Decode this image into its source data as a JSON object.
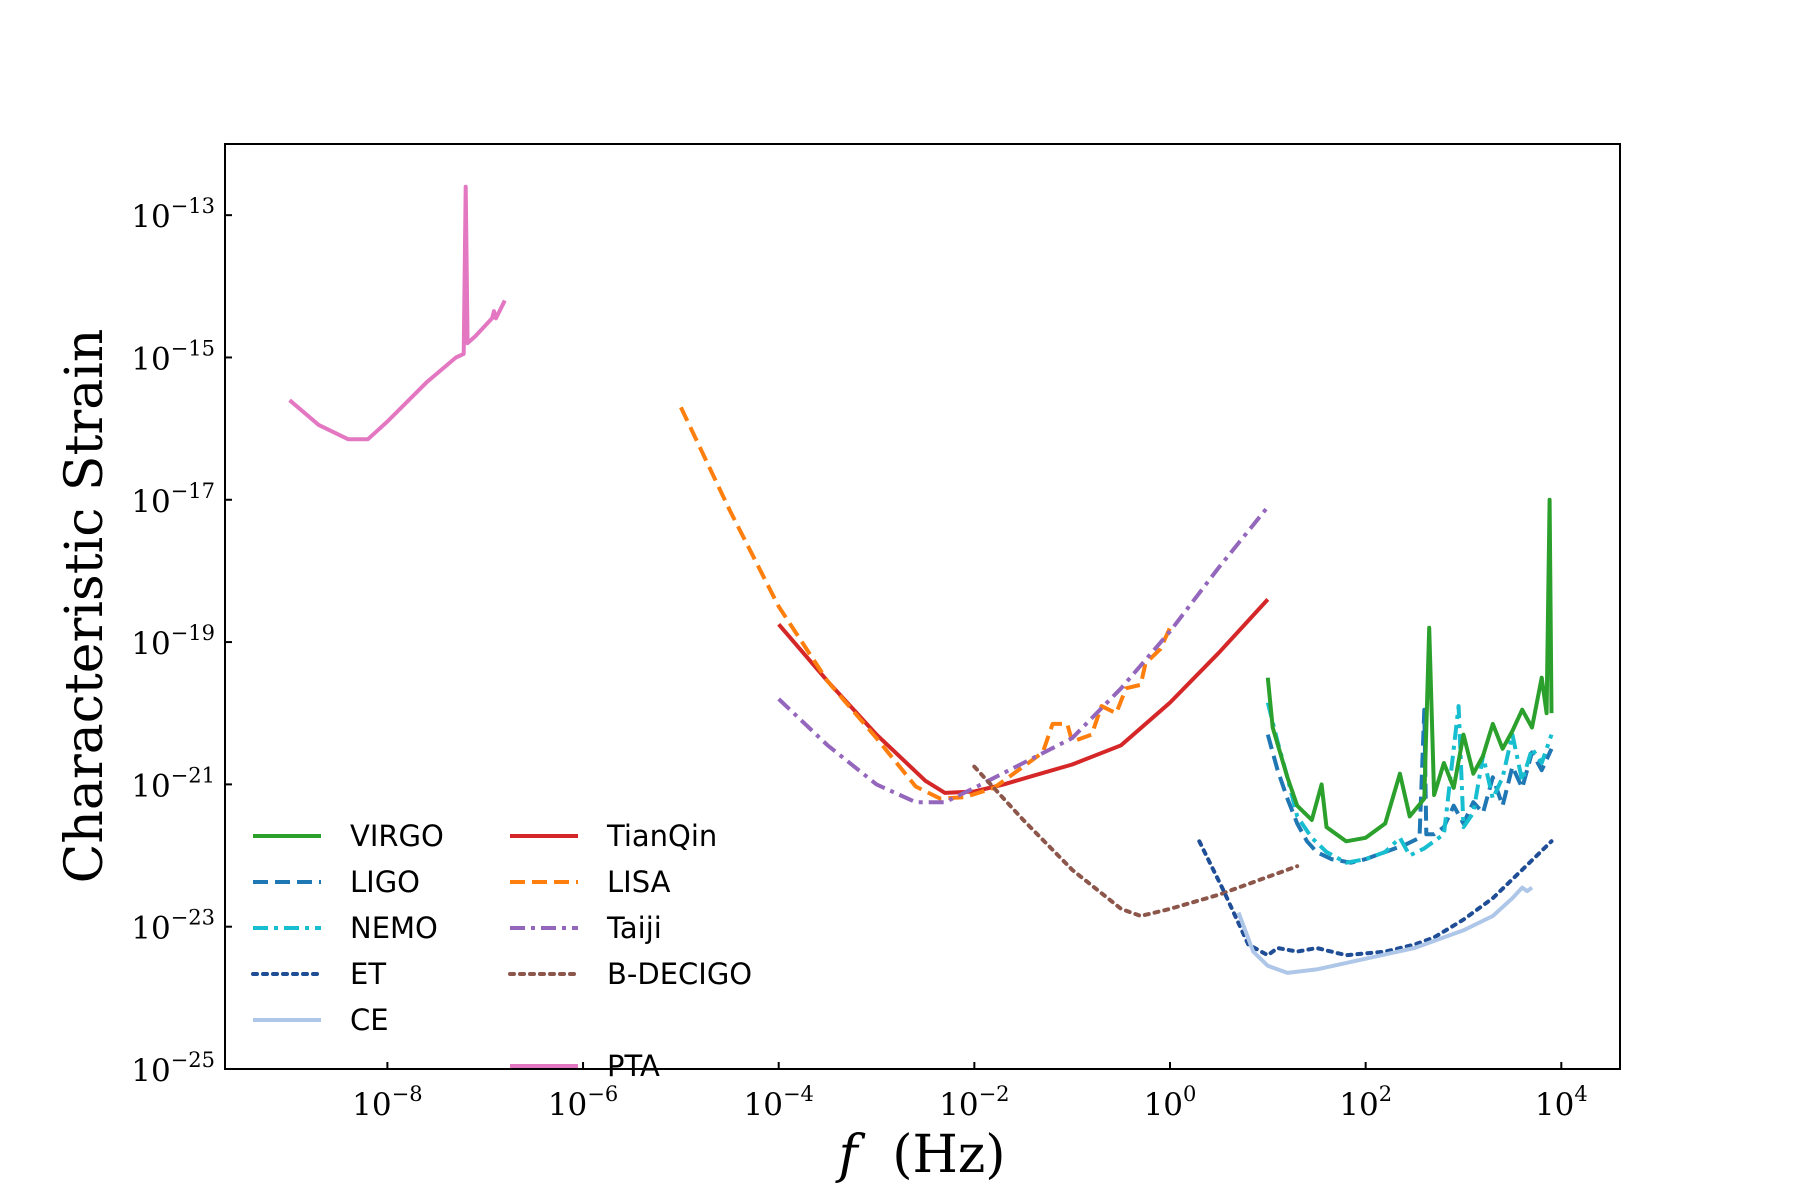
{
  "chart_data": {
    "type": "line",
    "title": "",
    "xlabel": "f (Hz)",
    "xlabel_parts": {
      "symbol": "f",
      "unit": "(Hz)"
    },
    "ylabel": "Characteristic Strain",
    "x_scale": "log",
    "y_scale": "log",
    "xlim_log10": [
      -9.66,
      4.6
    ],
    "ylim_log10": [
      -25,
      -12
    ],
    "grid": false,
    "legend_position": "lower-left",
    "x_ticks": [
      {
        "exp": -8,
        "base": "10",
        "sup": "−8"
      },
      {
        "exp": -6,
        "base": "10",
        "sup": "−6"
      },
      {
        "exp": -4,
        "base": "10",
        "sup": "−4"
      },
      {
        "exp": -2,
        "base": "10",
        "sup": "−2"
      },
      {
        "exp": 0,
        "base": "10",
        "sup": "0"
      },
      {
        "exp": 2,
        "base": "10",
        "sup": "2"
      },
      {
        "exp": 4,
        "base": "10",
        "sup": "4"
      }
    ],
    "y_ticks": [
      {
        "exp": -13,
        "base": "10",
        "sup": "−13"
      },
      {
        "exp": -15,
        "base": "10",
        "sup": "−15"
      },
      {
        "exp": -17,
        "base": "10",
        "sup": "−17"
      },
      {
        "exp": -19,
        "base": "10",
        "sup": "−19"
      },
      {
        "exp": -21,
        "base": "10",
        "sup": "−21"
      },
      {
        "exp": -23,
        "base": "10",
        "sup": "−23"
      },
      {
        "exp": -25,
        "base": "10",
        "sup": "−25"
      }
    ],
    "series": [
      {
        "name": "PTA",
        "color": "#e377c2",
        "dash": "solid",
        "legend_col": 1,
        "legend_row": 5,
        "points_log10": [
          [
            -9.0,
            -15.6
          ],
          [
            -8.7,
            -15.95
          ],
          [
            -8.4,
            -16.15
          ],
          [
            -8.2,
            -16.15
          ],
          [
            -8.0,
            -15.9
          ],
          [
            -7.6,
            -15.35
          ],
          [
            -7.3,
            -15.0
          ],
          [
            -7.22,
            -14.95
          ],
          [
            -7.2,
            -12.6
          ],
          [
            -7.18,
            -14.8
          ],
          [
            -7.1,
            -14.7
          ],
          [
            -6.93,
            -14.45
          ],
          [
            -6.91,
            -14.35
          ],
          [
            -6.89,
            -14.45
          ],
          [
            -6.8,
            -14.2
          ]
        ]
      },
      {
        "name": "TianQin",
        "color": "#d62728",
        "dash": "solid",
        "legend_col": 1,
        "legend_row": 0,
        "points_log10": [
          [
            -4.0,
            -18.75
          ],
          [
            -3.5,
            -19.55
          ],
          [
            -3.0,
            -20.3
          ],
          [
            -2.5,
            -20.95
          ],
          [
            -2.3,
            -21.12
          ],
          [
            -2.0,
            -21.1
          ],
          [
            -1.7,
            -21.0
          ],
          [
            -1.4,
            -20.88
          ],
          [
            -1.0,
            -20.72
          ],
          [
            -0.5,
            -20.45
          ],
          [
            0.0,
            -19.85
          ],
          [
            0.5,
            -19.15
          ],
          [
            1.0,
            -18.4
          ]
        ]
      },
      {
        "name": "LISA",
        "color": "#ff7f0e",
        "dash": "dashed",
        "legend_col": 1,
        "legend_row": 1,
        "points_log10": [
          [
            -5.0,
            -15.7
          ],
          [
            -4.5,
            -17.15
          ],
          [
            -4.0,
            -18.5
          ],
          [
            -3.5,
            -19.55
          ],
          [
            -3.0,
            -20.35
          ],
          [
            -2.6,
            -21.03
          ],
          [
            -2.35,
            -21.2
          ],
          [
            -2.1,
            -21.18
          ],
          [
            -1.8,
            -21.05
          ],
          [
            -1.6,
            -20.85
          ],
          [
            -1.3,
            -20.55
          ],
          [
            -1.2,
            -20.15
          ],
          [
            -1.05,
            -20.15
          ],
          [
            -1.0,
            -20.4
          ],
          [
            -0.8,
            -20.3
          ],
          [
            -0.7,
            -19.9
          ],
          [
            -0.55,
            -20.0
          ],
          [
            -0.45,
            -19.65
          ],
          [
            -0.3,
            -19.6
          ],
          [
            -0.25,
            -19.3
          ],
          [
            -0.1,
            -19.1
          ],
          [
            0.0,
            -18.8
          ]
        ]
      },
      {
        "name": "Taiji",
        "color": "#9467bd",
        "dash": "dashdot",
        "legend_col": 1,
        "legend_row": 2,
        "points_log10": [
          [
            -4.0,
            -19.8
          ],
          [
            -3.5,
            -20.45
          ],
          [
            -3.0,
            -21.0
          ],
          [
            -2.6,
            -21.25
          ],
          [
            -2.3,
            -21.25
          ],
          [
            -2.0,
            -21.05
          ],
          [
            -1.5,
            -20.7
          ],
          [
            -1.0,
            -20.35
          ],
          [
            -0.5,
            -19.65
          ],
          [
            0.0,
            -18.85
          ],
          [
            0.5,
            -17.95
          ],
          [
            1.0,
            -17.1
          ]
        ]
      },
      {
        "name": "B-DECIGO",
        "color": "#8c564b",
        "dash": "dotted",
        "legend_col": 1,
        "legend_row": 3,
        "points_log10": [
          [
            -2.0,
            -20.75
          ],
          [
            -1.5,
            -21.5
          ],
          [
            -1.0,
            -22.2
          ],
          [
            -0.5,
            -22.75
          ],
          [
            -0.3,
            -22.85
          ],
          [
            0.0,
            -22.75
          ],
          [
            0.5,
            -22.55
          ],
          [
            1.0,
            -22.3
          ],
          [
            1.3,
            -22.15
          ]
        ]
      },
      {
        "name": "ET",
        "color": "#1f4e96",
        "dash": "dotted",
        "legend_col": 0,
        "legend_row": 3,
        "points_log10": [
          [
            0.3,
            -21.8
          ],
          [
            0.55,
            -22.5
          ],
          [
            0.8,
            -23.25
          ],
          [
            1.0,
            -23.4
          ],
          [
            1.1,
            -23.3
          ],
          [
            1.3,
            -23.35
          ],
          [
            1.5,
            -23.3
          ],
          [
            1.8,
            -23.4
          ],
          [
            2.2,
            -23.35
          ],
          [
            2.5,
            -23.25
          ],
          [
            2.7,
            -23.15
          ],
          [
            3.0,
            -22.9
          ],
          [
            3.3,
            -22.6
          ],
          [
            3.6,
            -22.2
          ],
          [
            3.9,
            -21.8
          ]
        ]
      },
      {
        "name": "CE",
        "color": "#aec7e8",
        "dash": "solid",
        "legend_col": 0,
        "legend_row": 4,
        "points_log10": [
          [
            0.7,
            -22.8
          ],
          [
            0.85,
            -23.35
          ],
          [
            1.0,
            -23.55
          ],
          [
            1.2,
            -23.65
          ],
          [
            1.5,
            -23.6
          ],
          [
            2.0,
            -23.45
          ],
          [
            2.5,
            -23.3
          ],
          [
            3.0,
            -23.05
          ],
          [
            3.3,
            -22.85
          ],
          [
            3.5,
            -22.6
          ],
          [
            3.6,
            -22.45
          ],
          [
            3.65,
            -22.5
          ],
          [
            3.7,
            -22.45
          ]
        ]
      },
      {
        "name": "LIGO",
        "color": "#1f77b4",
        "dash": "dashed",
        "legend_col": 0,
        "legend_row": 1,
        "points_log10": [
          [
            1.0,
            -20.3
          ],
          [
            1.1,
            -20.8
          ],
          [
            1.2,
            -21.2
          ],
          [
            1.3,
            -21.55
          ],
          [
            1.4,
            -21.8
          ],
          [
            1.5,
            -21.95
          ],
          [
            1.65,
            -22.05
          ],
          [
            1.85,
            -22.1
          ],
          [
            2.0,
            -22.05
          ],
          [
            2.2,
            -21.95
          ],
          [
            2.4,
            -21.85
          ],
          [
            2.55,
            -21.75
          ],
          [
            2.6,
            -19.95
          ],
          [
            2.62,
            -21.7
          ],
          [
            2.7,
            -21.7
          ],
          [
            2.8,
            -21.6
          ],
          [
            2.9,
            -21.3
          ],
          [
            3.0,
            -21.55
          ],
          [
            3.1,
            -21.25
          ],
          [
            3.2,
            -21.4
          ],
          [
            3.3,
            -20.9
          ],
          [
            3.4,
            -21.3
          ],
          [
            3.5,
            -20.75
          ],
          [
            3.6,
            -21.05
          ],
          [
            3.7,
            -20.55
          ],
          [
            3.8,
            -20.8
          ],
          [
            3.9,
            -20.5
          ]
        ]
      },
      {
        "name": "NEMO",
        "color": "#17becf",
        "dash": "dashdot",
        "legend_col": 0,
        "legend_row": 2,
        "points_log10": [
          [
            1.0,
            -19.85
          ],
          [
            1.1,
            -20.4
          ],
          [
            1.2,
            -20.9
          ],
          [
            1.3,
            -21.45
          ],
          [
            1.45,
            -21.75
          ],
          [
            1.6,
            -21.95
          ],
          [
            1.8,
            -22.1
          ],
          [
            2.0,
            -22.05
          ],
          [
            2.2,
            -21.95
          ],
          [
            2.35,
            -21.75
          ],
          [
            2.45,
            -22.0
          ],
          [
            2.6,
            -21.9
          ],
          [
            2.8,
            -21.7
          ],
          [
            2.95,
            -19.9
          ],
          [
            3.0,
            -21.6
          ],
          [
            3.1,
            -21.4
          ],
          [
            3.2,
            -20.6
          ],
          [
            3.3,
            -21.2
          ],
          [
            3.4,
            -20.9
          ],
          [
            3.5,
            -20.3
          ],
          [
            3.6,
            -20.95
          ],
          [
            3.7,
            -20.5
          ],
          [
            3.8,
            -20.7
          ],
          [
            3.9,
            -20.3
          ]
        ]
      },
      {
        "name": "VIRGO",
        "color": "#2ca02c",
        "dash": "solid",
        "legend_col": 0,
        "legend_row": 0,
        "points_log10": [
          [
            1.0,
            -19.5
          ],
          [
            1.05,
            -20.2
          ],
          [
            1.2,
            -20.9
          ],
          [
            1.3,
            -21.3
          ],
          [
            1.45,
            -21.5
          ],
          [
            1.55,
            -21.0
          ],
          [
            1.6,
            -21.6
          ],
          [
            1.8,
            -21.8
          ],
          [
            2.0,
            -21.75
          ],
          [
            2.2,
            -21.55
          ],
          [
            2.35,
            -20.85
          ],
          [
            2.45,
            -21.45
          ],
          [
            2.6,
            -21.2
          ],
          [
            2.65,
            -18.8
          ],
          [
            2.7,
            -21.15
          ],
          [
            2.8,
            -20.7
          ],
          [
            2.9,
            -21.05
          ],
          [
            3.0,
            -20.3
          ],
          [
            3.1,
            -20.85
          ],
          [
            3.2,
            -20.6
          ],
          [
            3.3,
            -20.15
          ],
          [
            3.4,
            -20.5
          ],
          [
            3.5,
            -20.25
          ],
          [
            3.6,
            -19.95
          ],
          [
            3.7,
            -20.2
          ],
          [
            3.8,
            -19.5
          ],
          [
            3.85,
            -20.0
          ],
          [
            3.88,
            -17.0
          ],
          [
            3.9,
            -20.0
          ]
        ]
      }
    ]
  }
}
